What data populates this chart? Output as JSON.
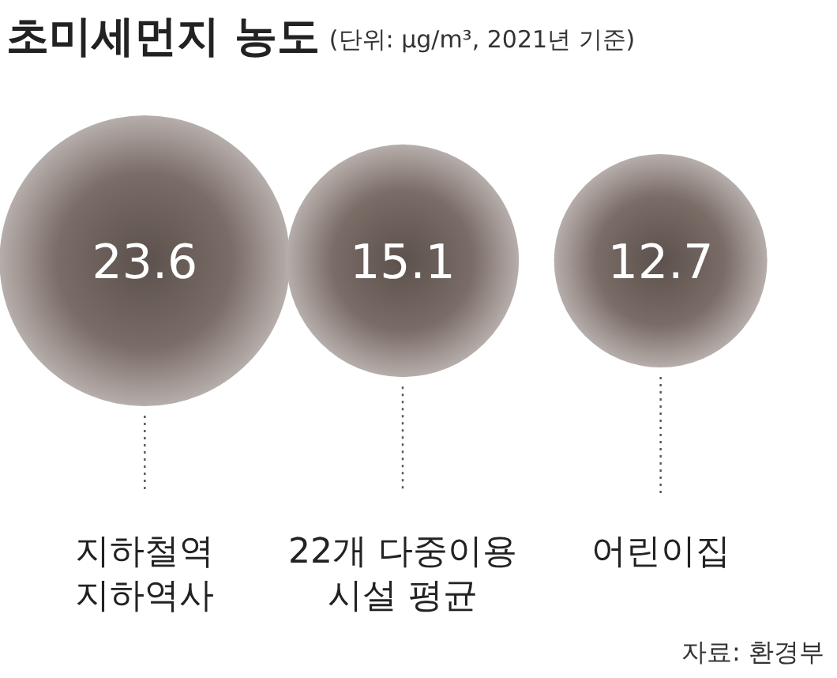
{
  "chart_data": {
    "type": "other",
    "title": "초미세먼지 농도",
    "subtitle": "(단위: μg/m³, 2021년 기준)",
    "categories": [
      "지하철역\n지하역사",
      "22개 다중이용\n시설 평균",
      "어린이집"
    ],
    "values": [
      23.6,
      15.1,
      12.7
    ],
    "color": "#7a6c66",
    "data_labels": true,
    "annotations": [
      "자료: 환경부"
    ]
  }
}
